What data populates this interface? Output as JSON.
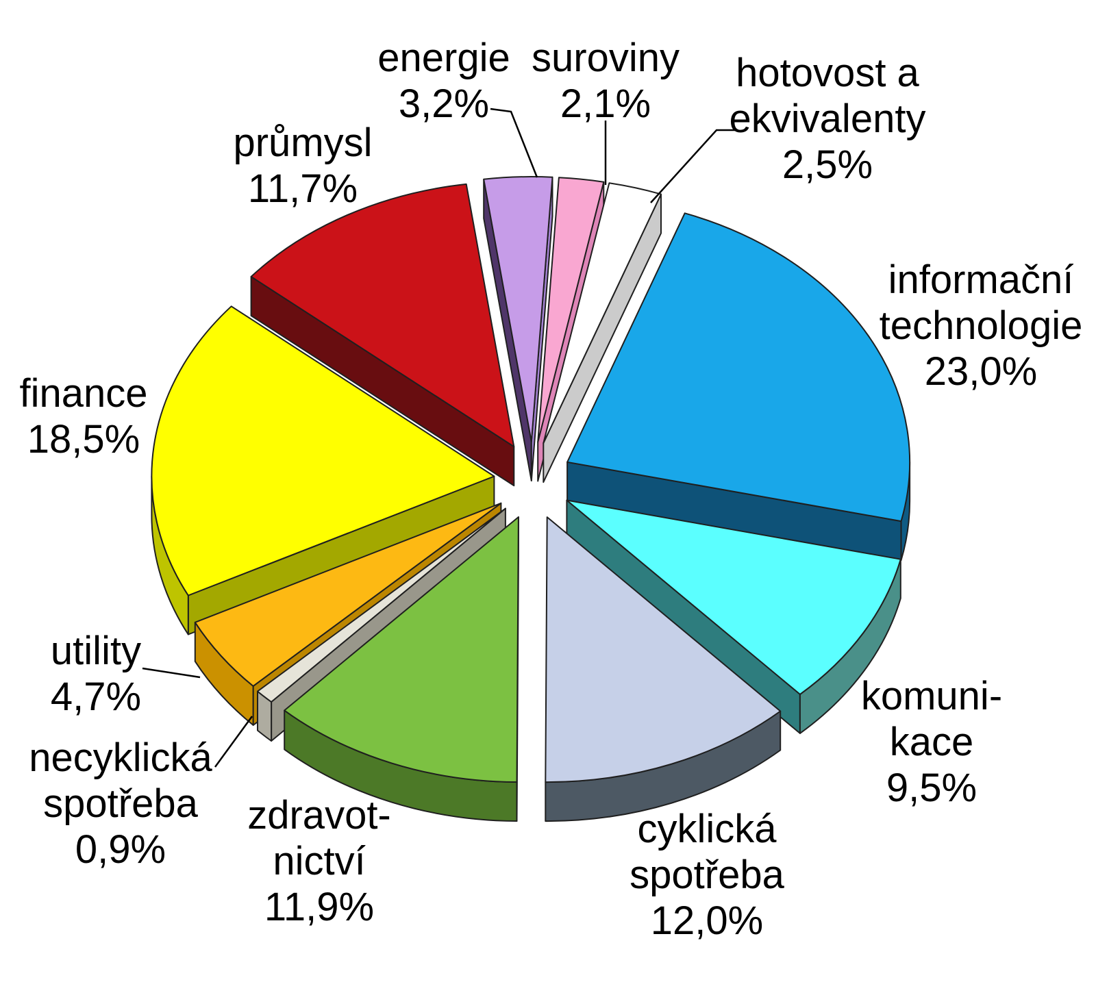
{
  "chart_data": {
    "type": "pie",
    "style": "3d-exploded",
    "title": "",
    "unit": "%",
    "decimal_separator": ",",
    "legend_position": "none",
    "background_color": "#FFFFFF",
    "outline_color": "#1F1F1F",
    "leader_line_color": "#000000",
    "segments": [
      {
        "id": "energie",
        "label": "energie",
        "value": 3.2,
        "value_label": "3,2%",
        "label_lines": [
          "energie",
          "3,2%"
        ],
        "colors": {
          "top": "#C69CE8",
          "side_start": "#4F3569",
          "side_end": "#A584D4",
          "rim": "#A584D4"
        }
      },
      {
        "id": "suroviny",
        "label": "suroviny",
        "value": 2.1,
        "value_label": "2,1%",
        "label_lines": [
          "suroviny",
          "2,1%"
        ],
        "colors": {
          "top": "#F9A7D1",
          "side_start": "#B0608F",
          "side_end": "#DE85B7",
          "rim": "#DE85B7"
        }
      },
      {
        "id": "hotovost-a-ekvivalenty",
        "label": "hotovost a ekvivalenty",
        "value": 2.5,
        "value_label": "2,5%",
        "label_lines": [
          "hotovost a",
          "ekvivalenty",
          "2,5%"
        ],
        "colors": {
          "top": "#FFFFFF",
          "side_start": "#BFBFBF",
          "side_end": "#CBCBCB",
          "rim": "#D8D8D8"
        }
      },
      {
        "id": "informacni-technologie",
        "label": "informační technologie",
        "value": 23.0,
        "value_label": "23,0%",
        "label_lines": [
          "informační",
          "technologie",
          "23,0%"
        ],
        "colors": {
          "top": "#19A7E9",
          "side_start": "#0E5278",
          "side_end": "#0E5278",
          "rim": "#0F5B84"
        }
      },
      {
        "id": "komunikace",
        "label": "komunikace",
        "value": 9.5,
        "value_label": "9,5%",
        "label_lines": [
          "komuni-",
          "kace",
          "9,5%"
        ],
        "colors": {
          "top": "#5BFFFF",
          "side_start": "#2E7D7E",
          "side_end": "#2E7D7E",
          "rim": "#4A9089"
        }
      },
      {
        "id": "cyklicka-spotreba",
        "label": "cyklická spotřeba",
        "value": 12.0,
        "value_label": "12,0%",
        "label_lines": [
          "cyklická",
          "spotřeba",
          "12,0%"
        ],
        "colors": {
          "top": "#C6D0E8",
          "side_start": "#4D5964",
          "side_end": "#4D5964",
          "rim": "#4D5964"
        }
      },
      {
        "id": "zdravotnictvi",
        "label": "zdravotnictví",
        "value": 11.9,
        "value_label": "11,9%",
        "label_lines": [
          "zdravot-",
          "nictví",
          "11,9%"
        ],
        "colors": {
          "top": "#7CC142",
          "side_start": "#456F23",
          "side_end": "#456F23",
          "rim": "#4C7927"
        }
      },
      {
        "id": "necyklicka-spotreba",
        "label": "necyklická spotřeba",
        "value": 0.9,
        "value_label": "0,9%",
        "label_lines": [
          "necyklická",
          "spotřeba",
          "0,9%"
        ],
        "colors": {
          "top": "#E6E4D9",
          "side_start": "#99978B",
          "side_end": "#AEACA0",
          "rim": "#AEACA0"
        }
      },
      {
        "id": "utility",
        "label": "utility",
        "value": 4.7,
        "value_label": "4,7%",
        "label_lines": [
          "utility",
          "4,7%"
        ],
        "colors": {
          "top": "#FDB913",
          "side_start": "#BC8600",
          "side_end": "#CB9100",
          "rim": "#CB9100"
        }
      },
      {
        "id": "finance",
        "label": "finance",
        "value": 18.5,
        "value_label": "18,5%",
        "label_lines": [
          "finance",
          "18,5%"
        ],
        "colors": {
          "top": "#FFFF00",
          "side_start": "#A3A800",
          "side_end": "#BEC400",
          "rim": "#BEC400"
        }
      },
      {
        "id": "prumysl",
        "label": "průmysl",
        "value": 11.7,
        "value_label": "11,7%",
        "label_lines": [
          "průmysl",
          "11,7%"
        ],
        "colors": {
          "top": "#CB1218",
          "side_start": "#680D10",
          "side_end": "#680D10",
          "rim": "#680D10"
        }
      }
    ]
  }
}
